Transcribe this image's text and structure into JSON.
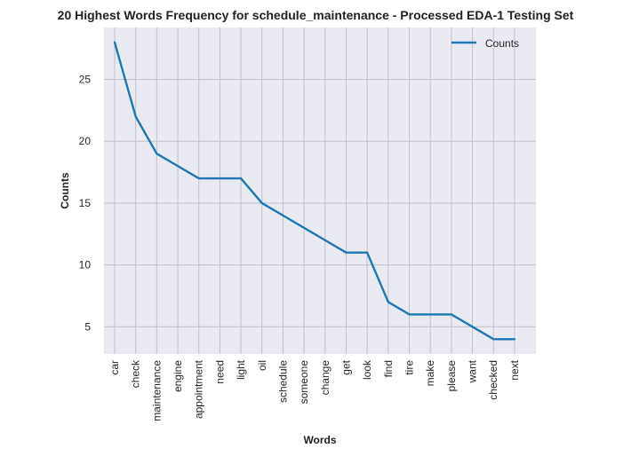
{
  "chart_data": {
    "type": "line",
    "title": "20 Highest Words Frequency for schedule_maintenance - Processed EDA-1 Testing Set",
    "xlabel": "Words",
    "ylabel": "Counts",
    "categories": [
      "car",
      "check",
      "maintenance",
      "engine",
      "appointment",
      "need",
      "light",
      "oil",
      "schedule",
      "someone",
      "change",
      "get",
      "look",
      "find",
      "tire",
      "make",
      "please",
      "want",
      "checked",
      "next"
    ],
    "series": [
      {
        "name": "Counts",
        "values": [
          28,
          22,
          19,
          18,
          17,
          17,
          17,
          15,
          14,
          13,
          12,
          11,
          11,
          7,
          6,
          6,
          6,
          5,
          4,
          4
        ]
      }
    ],
    "y_ticks": [
      5,
      10,
      15,
      20,
      25
    ],
    "ylim": [
      2.8,
      29.2
    ],
    "grid": true,
    "legend_position": "top-right",
    "colors": {
      "line": "#1f77b4",
      "plot_bg": "#eaeaf2",
      "grid": "#c0c0c8"
    }
  }
}
